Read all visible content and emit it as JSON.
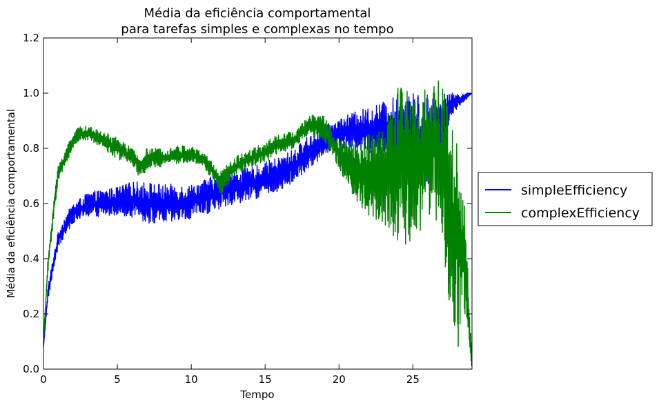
{
  "chart_data": {
    "type": "line",
    "title": [
      "Média da eficiência comportamental",
      "para tarefas simples e complexas no tempo"
    ],
    "xlabel": "Tempo",
    "ylabel": "Média da eficiência comportamental",
    "xlim": [
      0,
      29
    ],
    "ylim": [
      0.0,
      1.2
    ],
    "xticks": [
      0,
      5,
      10,
      15,
      20,
      25
    ],
    "xtick_labels": [
      "0",
      "5",
      "10",
      "15",
      "20",
      "25"
    ],
    "yticks": [
      0.0,
      0.2,
      0.4,
      0.6,
      0.8,
      1.0,
      1.2
    ],
    "ytick_labels": [
      "0.0",
      "0.2",
      "0.4",
      "0.6",
      "0.8",
      "1.0",
      "1.2"
    ],
    "grid": false,
    "legend": {
      "placement": "outside-right",
      "entries": [
        "simpleEfficiency",
        "complexEfficiency"
      ]
    },
    "series": [
      {
        "name": "simpleEfficiency",
        "color": "#0000ff",
        "points": [
          [
            0.0,
            0.08,
            0.08
          ],
          [
            0.3,
            0.25,
            0.3
          ],
          [
            0.7,
            0.36,
            0.42
          ],
          [
            1.0,
            0.44,
            0.5
          ],
          [
            1.5,
            0.48,
            0.56
          ],
          [
            2.0,
            0.53,
            0.6
          ],
          [
            3.0,
            0.55,
            0.64
          ],
          [
            4.0,
            0.55,
            0.65
          ],
          [
            5.0,
            0.56,
            0.66
          ],
          [
            6.0,
            0.55,
            0.68
          ],
          [
            7.0,
            0.53,
            0.68
          ],
          [
            8.0,
            0.52,
            0.67
          ],
          [
            9.0,
            0.53,
            0.67
          ],
          [
            10.0,
            0.54,
            0.67
          ],
          [
            11.0,
            0.56,
            0.69
          ],
          [
            12.0,
            0.58,
            0.71
          ],
          [
            13.0,
            0.6,
            0.72
          ],
          [
            14.0,
            0.61,
            0.73
          ],
          [
            15.0,
            0.63,
            0.75
          ],
          [
            16.0,
            0.64,
            0.77
          ],
          [
            17.0,
            0.68,
            0.8
          ],
          [
            18.0,
            0.72,
            0.85
          ],
          [
            19.0,
            0.78,
            0.88
          ],
          [
            20.0,
            0.8,
            0.91
          ],
          [
            21.0,
            0.8,
            0.93
          ],
          [
            22.0,
            0.78,
            0.95
          ],
          [
            23.0,
            0.78,
            0.97
          ],
          [
            24.0,
            0.75,
            0.99
          ],
          [
            25.0,
            0.7,
            1.0
          ],
          [
            26.0,
            0.66,
            0.99
          ],
          [
            27.0,
            0.8,
            1.0
          ],
          [
            27.5,
            0.9,
            1.0
          ],
          [
            28.0,
            0.94,
            1.0
          ],
          [
            28.5,
            0.97,
            1.0
          ],
          [
            29.0,
            1.0,
            1.0
          ]
        ],
        "notes": "each point is [tempo, low, high] envelope of the noisy trace"
      },
      {
        "name": "complexEfficiency",
        "color": "#008000",
        "points": [
          [
            0.0,
            0.1,
            0.1
          ],
          [
            0.3,
            0.35,
            0.4
          ],
          [
            0.7,
            0.55,
            0.62
          ],
          [
            1.0,
            0.68,
            0.74
          ],
          [
            1.5,
            0.74,
            0.8
          ],
          [
            2.0,
            0.8,
            0.86
          ],
          [
            2.5,
            0.83,
            0.88
          ],
          [
            3.0,
            0.83,
            0.88
          ],
          [
            4.0,
            0.8,
            0.86
          ],
          [
            5.0,
            0.76,
            0.84
          ],
          [
            6.0,
            0.74,
            0.8
          ],
          [
            6.5,
            0.69,
            0.77
          ],
          [
            7.0,
            0.72,
            0.8
          ],
          [
            8.0,
            0.73,
            0.8
          ],
          [
            9.0,
            0.74,
            0.81
          ],
          [
            10.0,
            0.75,
            0.81
          ],
          [
            11.0,
            0.72,
            0.78
          ],
          [
            12.0,
            0.63,
            0.72
          ],
          [
            13.0,
            0.7,
            0.77
          ],
          [
            14.0,
            0.73,
            0.8
          ],
          [
            15.0,
            0.75,
            0.82
          ],
          [
            16.0,
            0.78,
            0.86
          ],
          [
            17.0,
            0.8,
            0.86
          ],
          [
            18.0,
            0.85,
            0.92
          ],
          [
            19.0,
            0.82,
            0.93
          ],
          [
            19.5,
            0.78,
            0.86
          ],
          [
            20.0,
            0.72,
            0.84
          ],
          [
            21.0,
            0.62,
            0.82
          ],
          [
            22.0,
            0.55,
            0.85
          ],
          [
            23.0,
            0.53,
            0.88
          ],
          [
            24.0,
            0.45,
            1.05
          ],
          [
            25.0,
            0.45,
            1.02
          ],
          [
            25.5,
            0.5,
            0.98
          ],
          [
            26.0,
            0.55,
            1.05
          ],
          [
            26.5,
            0.55,
            1.07
          ],
          [
            27.0,
            0.4,
            1.05
          ],
          [
            27.5,
            0.2,
            0.95
          ],
          [
            28.0,
            0.05,
            0.85
          ],
          [
            28.5,
            0.2,
            0.6
          ],
          [
            29.0,
            0.0,
            0.05
          ]
        ],
        "notes": "each point is [tempo, low, high] envelope of the noisy trace"
      }
    ]
  }
}
